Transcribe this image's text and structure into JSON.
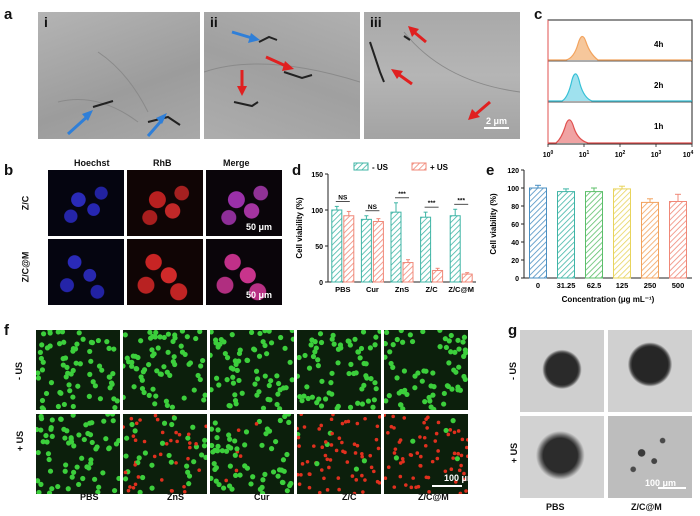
{
  "panels": {
    "a": {
      "label": "a",
      "sub_labels": [
        "i",
        "ii",
        "iii"
      ],
      "scale": "2 μm"
    },
    "b": {
      "label": "b",
      "columns": [
        "Hoechst",
        "RhB",
        "Merge"
      ],
      "rows": [
        "Z/C",
        "Z/C@M"
      ],
      "scale": "50 μm"
    },
    "c": {
      "label": "c",
      "times": [
        "4h",
        "2h",
        "1h"
      ],
      "x_ticks": [
        "10",
        "10",
        "10",
        "10",
        "10"
      ],
      "x_exps": [
        "0",
        "1",
        "2",
        "3",
        "4"
      ]
    },
    "d": {
      "label": "d"
    },
    "e": {
      "label": "e"
    },
    "f": {
      "label": "f",
      "rows": [
        "- US",
        "+ US"
      ],
      "columns": [
        "PBS",
        "ZnS",
        "Cur",
        "Z/C",
        "Z/C@M"
      ],
      "scale": "100 μm"
    },
    "g": {
      "label": "g",
      "rows": [
        "- US",
        "+ US"
      ],
      "columns": [
        "PBS",
        "Z/C@M"
      ],
      "scale": "100 μm"
    }
  },
  "colors": {
    "teal": "#3fb5a6",
    "salmon": "#f08878",
    "orange": "#f2a35e",
    "cyan": "#35c0d6",
    "red": "#e0504f"
  },
  "chart_data": [
    {
      "type": "bar",
      "panel": "d",
      "categories": [
        "PBS",
        "Cur",
        "ZnS",
        "Z/C",
        "Z/C@M"
      ],
      "series": [
        {
          "name": "- US",
          "values": [
            100,
            87,
            97,
            90,
            92
          ],
          "errors": [
            5,
            5,
            13,
            7,
            9
          ]
        },
        {
          "name": "+ US",
          "values": [
            92,
            84,
            27,
            16,
            11
          ],
          "errors": [
            6,
            4,
            4,
            3,
            2
          ]
        }
      ],
      "significance": [
        "NS",
        "NS",
        "***",
        "***",
        "***"
      ],
      "ylabel": "Cell viability (%)",
      "ylim": [
        0,
        150
      ],
      "yticks": [
        0,
        50,
        100,
        150
      ]
    },
    {
      "type": "bar",
      "panel": "e",
      "categories": [
        "0",
        "31.25",
        "62.5",
        "125",
        "250",
        "500"
      ],
      "values": [
        100,
        96,
        96,
        99,
        84,
        85
      ],
      "errors": [
        3,
        3,
        4,
        3,
        4,
        8
      ],
      "colors": [
        "#4a8fc2",
        "#3fb5a6",
        "#5cbf6a",
        "#e8d45c",
        "#f2a35e",
        "#f08878"
      ],
      "xlabel": "Concentration (μg mL⁻¹)",
      "ylabel": "Cell viability (%)",
      "ylim": [
        0,
        120
      ],
      "yticks": [
        0,
        20,
        40,
        60,
        80,
        100,
        120
      ]
    }
  ]
}
